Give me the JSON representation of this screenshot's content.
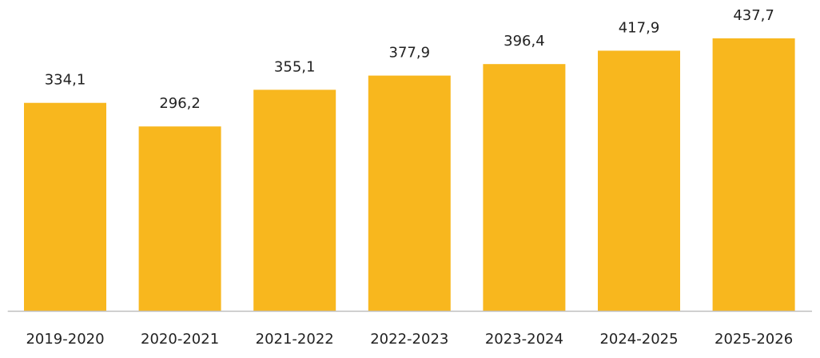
{
  "chart_data": {
    "type": "bar",
    "categories": [
      "2019-2020",
      "2020-2021",
      "2021-2022",
      "2022-2023",
      "2023-2024",
      "2024-2025",
      "2025-2026"
    ],
    "values": [
      334.1,
      296.2,
      355.1,
      377.9,
      396.4,
      417.9,
      437.7
    ],
    "value_labels": [
      "334,1",
      "296,2",
      "355,1",
      "377,9",
      "396,4",
      "417,9",
      "437,7"
    ],
    "color": "#f8b71e"
  }
}
